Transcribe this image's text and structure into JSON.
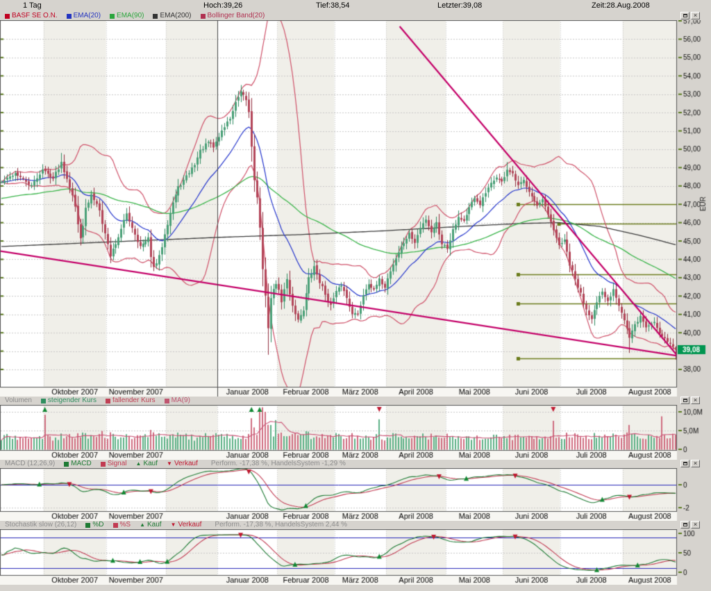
{
  "header": {
    "period": "1 Tag",
    "high_label": "Hoch:39,26",
    "low_label": "Tief:38,54",
    "last_label": "Letzter:39,08",
    "time_label": "Zeit:28.Aug.2008"
  },
  "window_buttons": {
    "maximize_icon": "window-maximize-icon",
    "close_glyph": "×"
  },
  "panels": {
    "main": {
      "legend": [
        {
          "label": "BASF SE O.N.",
          "color": "#c00020"
        },
        {
          "label": "EMA(20)",
          "color": "#2233c0"
        },
        {
          "label": "EMA(90)",
          "color": "#2aa53c"
        },
        {
          "label": "EMA(200)",
          "color": "#333333"
        },
        {
          "label": "Bollinger Band(20)",
          "color": "#b03050"
        }
      ],
      "axis": {
        "unit": "EUR",
        "max": 57,
        "min": 38,
        "step": 1,
        "last_price": "39,08"
      }
    },
    "volume": {
      "title": "Volumen",
      "legend": [
        {
          "label": "steigender Kurs",
          "color": "#2f8f5f"
        },
        {
          "label": "fallender Kurs",
          "color": "#c04055"
        },
        {
          "label": "MA(9)",
          "color": "#c05570"
        }
      ],
      "axis_labels": [
        "10,0M",
        "5,0M",
        "0"
      ],
      "axis_values": [
        10,
        5,
        0
      ]
    },
    "macd": {
      "title": "MACD (12,26,9)",
      "legend": [
        {
          "label": "MACD",
          "color": "#1d7a33"
        },
        {
          "label": "Signal",
          "color": "#c23b52"
        },
        {
          "label": "Kauf",
          "color": "#1d7a33",
          "glyph": "▲"
        },
        {
          "label": "Verkauf",
          "color": "#c01830",
          "glyph": "▼"
        }
      ],
      "performance": "Perform. -17,38 %, HandelsSystem -1,29 %",
      "axis_labels": [
        "0",
        "-2"
      ],
      "axis_values": [
        0,
        -2
      ]
    },
    "stochastic": {
      "title": "Stochastik slow (26,12)",
      "legend": [
        {
          "label": "%D",
          "color": "#1d7a33"
        },
        {
          "label": "%S",
          "color": "#c23b52"
        },
        {
          "label": "Kauf",
          "color": "#1d7a33",
          "glyph": "▲"
        },
        {
          "label": "Verkauf",
          "color": "#c01830",
          "glyph": "▼"
        }
      ],
      "performance": "Perform. -17,38 %, HandelsSystem 2,44 %",
      "axis_labels": [
        "100",
        "50",
        "0"
      ],
      "axis_values": [
        100,
        50,
        0
      ]
    }
  },
  "chart_data": {
    "type": "candlestick",
    "instrument": "BASF SE O.N.",
    "period": "1 Tag",
    "last_day": {
      "open": 39.2,
      "high": 39.26,
      "low": 38.54,
      "close": 39.08
    },
    "price_axis": {
      "min": 38,
      "max": 57,
      "step": 1,
      "unit": "EUR"
    },
    "months": [
      {
        "label": "",
        "days": 16,
        "shade": false
      },
      {
        "label": "Oktober 2007",
        "days": 23,
        "shade": true
      },
      {
        "label": "November 2007",
        "days": 22,
        "shade": false
      },
      {
        "label": "",
        "days": 19,
        "shade": true
      },
      {
        "label": "Januar 2008",
        "days": 22,
        "shade": false
      },
      {
        "label": "Februar 2008",
        "days": 21,
        "shade": true
      },
      {
        "label": "März 2008",
        "days": 19,
        "shade": false
      },
      {
        "label": "April 2008",
        "days": 22,
        "shade": true
      },
      {
        "label": "Mai 2008",
        "days": 21,
        "shade": false
      },
      {
        "label": "Juni 2008",
        "days": 21,
        "shade": true
      },
      {
        "label": "Juli 2008",
        "days": 23,
        "shade": false
      },
      {
        "label": "August 2008",
        "days": 20,
        "shade": true
      }
    ],
    "close_anchors": [
      [
        0,
        48.2
      ],
      [
        5,
        48.7
      ],
      [
        11,
        48.0
      ],
      [
        15,
        48.9
      ],
      [
        19,
        48.4
      ],
      [
        22,
        49.3
      ],
      [
        26,
        47.6
      ],
      [
        28,
        45.9
      ],
      [
        29,
        45.2
      ],
      [
        31,
        46.7
      ],
      [
        33,
        47.5
      ],
      [
        36,
        46.8
      ],
      [
        38,
        45.4
      ],
      [
        40,
        44.2
      ],
      [
        42,
        44.9
      ],
      [
        44,
        45.6
      ],
      [
        46,
        46.5
      ],
      [
        49,
        45.4
      ],
      [
        51,
        44.7
      ],
      [
        54,
        45.1
      ],
      [
        56,
        43.5
      ],
      [
        58,
        44.1
      ],
      [
        60,
        45.5
      ],
      [
        63,
        47.1
      ],
      [
        65,
        47.9
      ],
      [
        68,
        48.5
      ],
      [
        71,
        49.2
      ],
      [
        73,
        49.9
      ],
      [
        76,
        50.4
      ],
      [
        78,
        50.1
      ],
      [
        81,
        51.0
      ],
      [
        84,
        51.7
      ],
      [
        86,
        52.5
      ],
      [
        88,
        53.1
      ],
      [
        90,
        52.7
      ],
      [
        91,
        52.0
      ],
      [
        93,
        48.6
      ],
      [
        95,
        45.9
      ],
      [
        96,
        43.2
      ],
      [
        98,
        40.3
      ],
      [
        99,
        41.9
      ],
      [
        101,
        42.7
      ],
      [
        103,
        41.7
      ],
      [
        105,
        42.9
      ],
      [
        107,
        41.5
      ],
      [
        109,
        40.7
      ],
      [
        111,
        41.3
      ],
      [
        113,
        42.9
      ],
      [
        115,
        43.6
      ],
      [
        117,
        42.8
      ],
      [
        119,
        42.1
      ],
      [
        121,
        41.5
      ],
      [
        123,
        42.2
      ],
      [
        125,
        42.6
      ],
      [
        127,
        41.9
      ],
      [
        129,
        41.1
      ],
      [
        131,
        41.0
      ],
      [
        133,
        42.1
      ],
      [
        135,
        42.7
      ],
      [
        137,
        42.3
      ],
      [
        139,
        42.9
      ],
      [
        141,
        42.5
      ],
      [
        143,
        43.4
      ],
      [
        146,
        44.4
      ],
      [
        148,
        44.9
      ],
      [
        150,
        45.4
      ],
      [
        152,
        44.9
      ],
      [
        154,
        45.7
      ],
      [
        156,
        46.2
      ],
      [
        158,
        45.5
      ],
      [
        160,
        46.0
      ],
      [
        162,
        44.9
      ],
      [
        164,
        44.6
      ],
      [
        166,
        45.7
      ],
      [
        168,
        46.3
      ],
      [
        170,
        46.1
      ],
      [
        172,
        46.8
      ],
      [
        174,
        47.3
      ],
      [
        176,
        47.0
      ],
      [
        178,
        47.6
      ],
      [
        180,
        48.1
      ],
      [
        182,
        48.5
      ],
      [
        184,
        48.2
      ],
      [
        186,
        48.9
      ],
      [
        188,
        48.6
      ],
      [
        190,
        48.0
      ],
      [
        192,
        48.3
      ],
      [
        195,
        47.5
      ],
      [
        197,
        46.9
      ],
      [
        199,
        47.2
      ],
      [
        201,
        46.4
      ],
      [
        203,
        45.5
      ],
      [
        205,
        44.8
      ],
      [
        207,
        45.0
      ],
      [
        209,
        43.7
      ],
      [
        211,
        42.9
      ],
      [
        213,
        42.1
      ],
      [
        215,
        41.3
      ],
      [
        217,
        40.8
      ],
      [
        219,
        41.6
      ],
      [
        221,
        42.2
      ],
      [
        223,
        41.7
      ],
      [
        225,
        42.4
      ],
      [
        227,
        41.6
      ],
      [
        229,
        40.7
      ],
      [
        231,
        39.7
      ],
      [
        233,
        40.4
      ],
      [
        235,
        40.9
      ],
      [
        237,
        40.3
      ],
      [
        240,
        40.6
      ],
      [
        242,
        40.0
      ],
      [
        244,
        39.7
      ],
      [
        246,
        39.4
      ],
      [
        248,
        39.08
      ]
    ],
    "wick_overrides": {
      "22": {
        "high": 49.8
      },
      "88": {
        "high": 53.5
      },
      "98": {
        "low": 38.8
      },
      "186": {
        "high": 49.3
      },
      "231": {
        "low": 38.9
      }
    },
    "ema200_anchors": [
      [
        0,
        44.7
      ],
      [
        40,
        44.95
      ],
      [
        80,
        45.2
      ],
      [
        110,
        45.35
      ],
      [
        140,
        45.55
      ],
      [
        170,
        45.8
      ],
      [
        190,
        45.95
      ],
      [
        205,
        46.0
      ],
      [
        220,
        45.8
      ],
      [
        235,
        45.3
      ],
      [
        248,
        44.8
      ]
    ],
    "ema90_seed": 47.3,
    "trendlines": [
      {
        "from": [
          147,
          56.7
        ],
        "to": [
          250,
          38.6
        ]
      },
      {
        "from": [
          0,
          44.45
        ],
        "to": [
          250,
          38.72
        ]
      }
    ],
    "levels": [
      {
        "price": 47.0,
        "from_day": 190
      },
      {
        "price": 45.95,
        "from_day": 205
      },
      {
        "price": 43.2,
        "from_day": 190
      },
      {
        "price": 41.6,
        "from_day": 190
      },
      {
        "price": 38.6,
        "from_day": 190
      }
    ],
    "indicators": {
      "ema_periods": [
        20,
        90,
        200
      ],
      "bollinger": {
        "period": 20,
        "mult": 2
      },
      "macd": {
        "fast": 12,
        "slow": 26,
        "signal": 9
      },
      "stochastic": {
        "period": 26,
        "smooth": 12,
        "ref_lines": [
          90,
          10
        ]
      },
      "volume": {
        "ma_period": 9
      }
    },
    "volume_spikes": {
      "16": 9.2,
      "92": 8.3,
      "95": 10.6,
      "96": 11.2,
      "97": 10.0,
      "101": 7.8,
      "139": 8.0,
      "203": 7.6,
      "231": 6.5,
      "243": 8.8
    },
    "volume_arrows": {
      "up": [
        16,
        92,
        95
      ],
      "down": [
        139,
        203
      ]
    },
    "seed": 42,
    "colors": {
      "background": "#d6d3ce",
      "plot_bg": "#ffffff",
      "stripe": "#f0efe9",
      "label_row_bg": "#f7f6f2",
      "grid": "#c8c8c8",
      "axis_tick": "#5a7a1e",
      "candle_up": "#2e8a5f",
      "candle_up_fill": "#49a077",
      "candle_down": "#8f2b3c",
      "candle_down_fill": "#b34458",
      "ema20": "#2233cc",
      "ema90": "#3ab54a",
      "ema200": "#3a3a3a",
      "bollinger": "#cf5068",
      "trendline": "#c40068",
      "level": "#6b7c1c",
      "year_line": "#444444",
      "last_bg": "#009550",
      "last_text": "#ffffff",
      "zero_line": "#2626b8",
      "volume_up": "#5cb085",
      "volume_down": "#cf6b7f",
      "volume_ma": "#cc5577",
      "macd_line": "#1d7a33",
      "signal_line": "#c23b52",
      "buy": "#118833",
      "sell": "#c01830"
    }
  }
}
